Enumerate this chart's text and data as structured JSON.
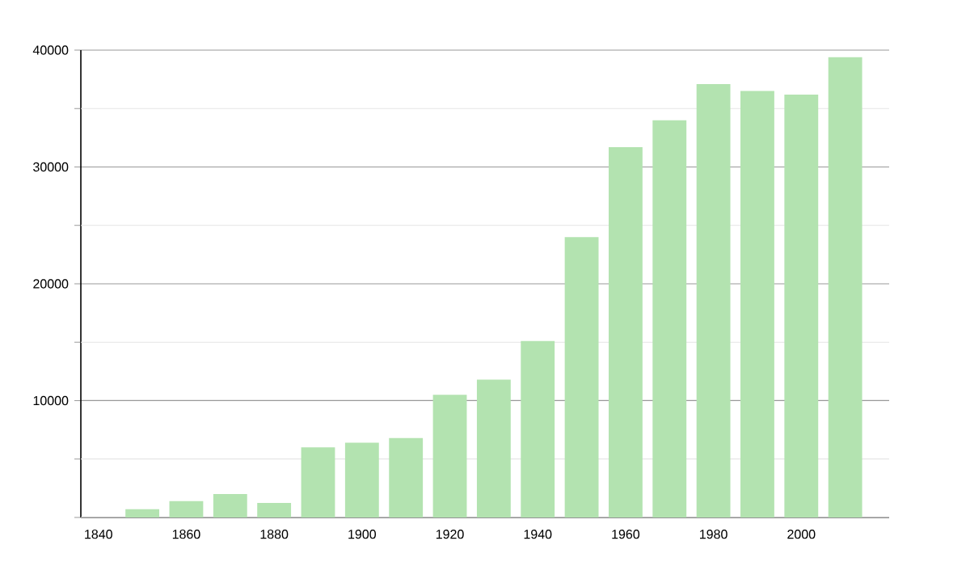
{
  "chart_data": {
    "type": "bar",
    "color": "#b3e3b0",
    "x": [
      1850,
      1860,
      1870,
      1880,
      1890,
      1900,
      1910,
      1920,
      1930,
      1940,
      1950,
      1960,
      1970,
      1980,
      1990,
      2000,
      2010
    ],
    "values": [
      700,
      1400,
      2000,
      1250,
      6000,
      6400,
      6800,
      10500,
      11800,
      15100,
      24000,
      31700,
      34000,
      37100,
      36500,
      36200,
      39400
    ],
    "xlim": [
      1836,
      2020
    ],
    "ylim": [
      0,
      40000
    ],
    "xticks": [
      1840,
      1860,
      1880,
      1900,
      1920,
      1940,
      1960,
      1980,
      2000
    ],
    "yticks": [
      {
        "value": 0,
        "label": null
      },
      {
        "value": 5000,
        "label": null
      },
      10000,
      {
        "value": 15000,
        "label": null
      },
      20000,
      {
        "value": 25000,
        "label": null
      },
      30000,
      {
        "value": 35000,
        "label": null
      },
      40000
    ],
    "grid": "y"
  }
}
